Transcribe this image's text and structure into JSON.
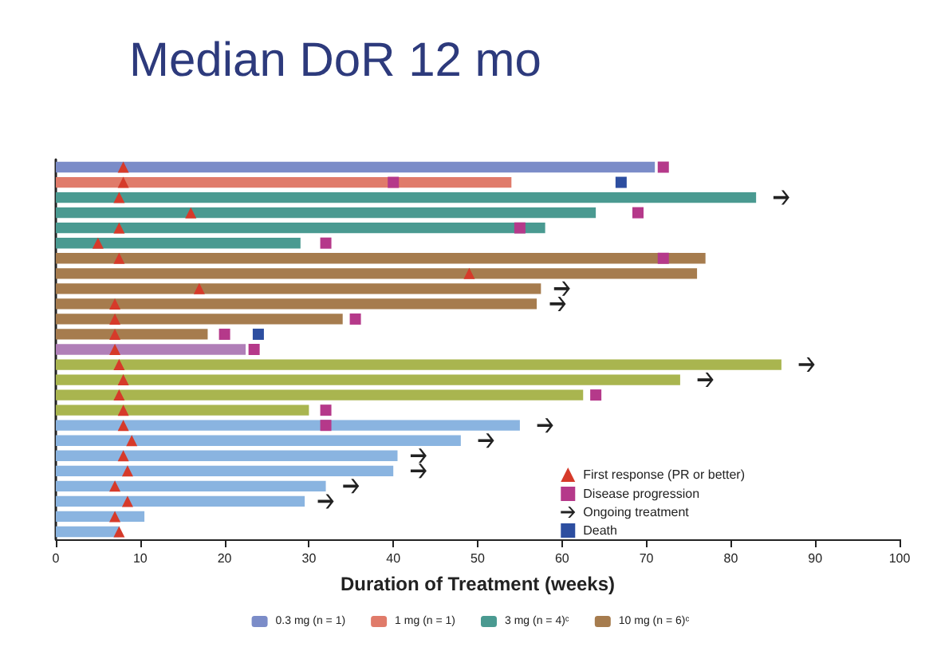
{
  "chart_data": {
    "type": "bar",
    "orientation": "horizontal",
    "stacked": true,
    "title": "Median DoR 12 mo",
    "xlabel": "Duration of Treatment (weeks)",
    "categories": [
      null,
      null,
      null,
      null,
      null,
      null,
      null,
      null,
      null,
      null,
      null,
      null,
      null,
      null,
      null,
      null,
      null,
      null,
      null,
      null,
      null,
      null,
      null,
      null,
      null
    ],
    "xlim": [
      0,
      100
    ],
    "xticks": [
      0,
      10,
      20,
      30,
      40,
      50,
      60,
      70,
      80,
      90,
      100
    ],
    "grid": false,
    "legend": "bottom right",
    "series": [
      {
        "name": "0.3 mg (n = 1)",
        "color": "#7b8cc8",
        "values": [
          71,
          null,
          null,
          null,
          null,
          null,
          null,
          null,
          null,
          null,
          null,
          null,
          null,
          null,
          null,
          null,
          null,
          null,
          null,
          null,
          null,
          null,
          null,
          null,
          null
        ]
      },
      {
        "name": "1 mg (n = 1)",
        "color": "#e07b6a",
        "values": [
          null,
          54,
          null,
          null,
          null,
          null,
          null,
          null,
          null,
          null,
          null,
          null,
          null,
          null,
          null,
          null,
          null,
          null,
          null,
          null,
          null,
          null,
          null,
          null,
          null
        ]
      },
      {
        "name": "3 mg (n = 4)ᶜ",
        "color": "#4a9a91",
        "values": [
          null,
          null,
          83,
          64,
          58,
          29,
          null,
          null,
          null,
          null,
          null,
          null,
          null,
          null,
          null,
          null,
          null,
          null,
          null,
          null,
          null,
          null,
          null,
          null,
          null
        ]
      },
      {
        "name": "10 mg (n = 6)ᶜ",
        "color": "#a67c4e",
        "values": [
          null,
          null,
          null,
          null,
          null,
          null,
          77,
          76,
          57.5,
          57,
          34,
          18,
          null,
          null,
          null,
          null,
          null,
          null,
          null,
          null,
          null,
          null,
          null,
          null,
          null
        ]
      },
      {
        "color": "#b07fb8",
        "values": [
          null,
          null,
          null,
          null,
          null,
          null,
          null,
          null,
          null,
          null,
          null,
          null,
          22.5,
          null,
          null,
          null,
          null,
          null,
          null,
          null,
          null,
          null,
          null,
          null,
          null
        ]
      },
      {
        "color": "#a9b54f",
        "values": [
          null,
          null,
          null,
          null,
          null,
          null,
          null,
          null,
          null,
          null,
          null,
          null,
          null,
          86,
          74,
          62.5,
          30,
          null,
          null,
          null,
          null,
          null,
          null,
          null,
          null
        ]
      },
      {
        "color": "#8ab4e0",
        "values": [
          null,
          null,
          null,
          null,
          null,
          null,
          null,
          null,
          null,
          null,
          null,
          null,
          null,
          null,
          null,
          null,
          null,
          55,
          48,
          40.5,
          40,
          32,
          29.5,
          10.5,
          7.5
        ]
      },
      {
        "type": "scatter",
        "name": "First response (PR or better)",
        "marker": "triangle",
        "color": "#d63a2a",
        "values": [
          8,
          8,
          7.5,
          16,
          7.5,
          5,
          7.5,
          49,
          17,
          7,
          7,
          7,
          7,
          7.5,
          8,
          7.5,
          8,
          8,
          9,
          8,
          8.5,
          7,
          8.5,
          7,
          7.5
        ]
      },
      {
        "type": "scatter",
        "name": "Disease progression",
        "marker": "square",
        "color": "#b5398a",
        "values": [
          72,
          40,
          null,
          69,
          55,
          32,
          72,
          null,
          null,
          null,
          35.5,
          20,
          23.5,
          null,
          null,
          64,
          32,
          32,
          null,
          null,
          null,
          null,
          null,
          null,
          null
        ]
      },
      {
        "type": "scatter",
        "name": "Ongoing treatment",
        "color": "#222222",
        "values": [
          null,
          null,
          86,
          null,
          null,
          null,
          null,
          null,
          60,
          59.5,
          null,
          null,
          null,
          89,
          77,
          null,
          null,
          58,
          51,
          43,
          43,
          35,
          32,
          null,
          null
        ]
      },
      {
        "type": "scatter",
        "name": "Death",
        "marker": "square",
        "color": "#2d4ea0",
        "values": [
          null,
          67,
          null,
          null,
          null,
          null,
          null,
          null,
          null,
          null,
          null,
          24,
          null,
          null,
          null,
          null,
          null,
          null,
          null,
          null,
          null,
          null,
          null,
          null,
          null
        ]
      }
    ]
  }
}
